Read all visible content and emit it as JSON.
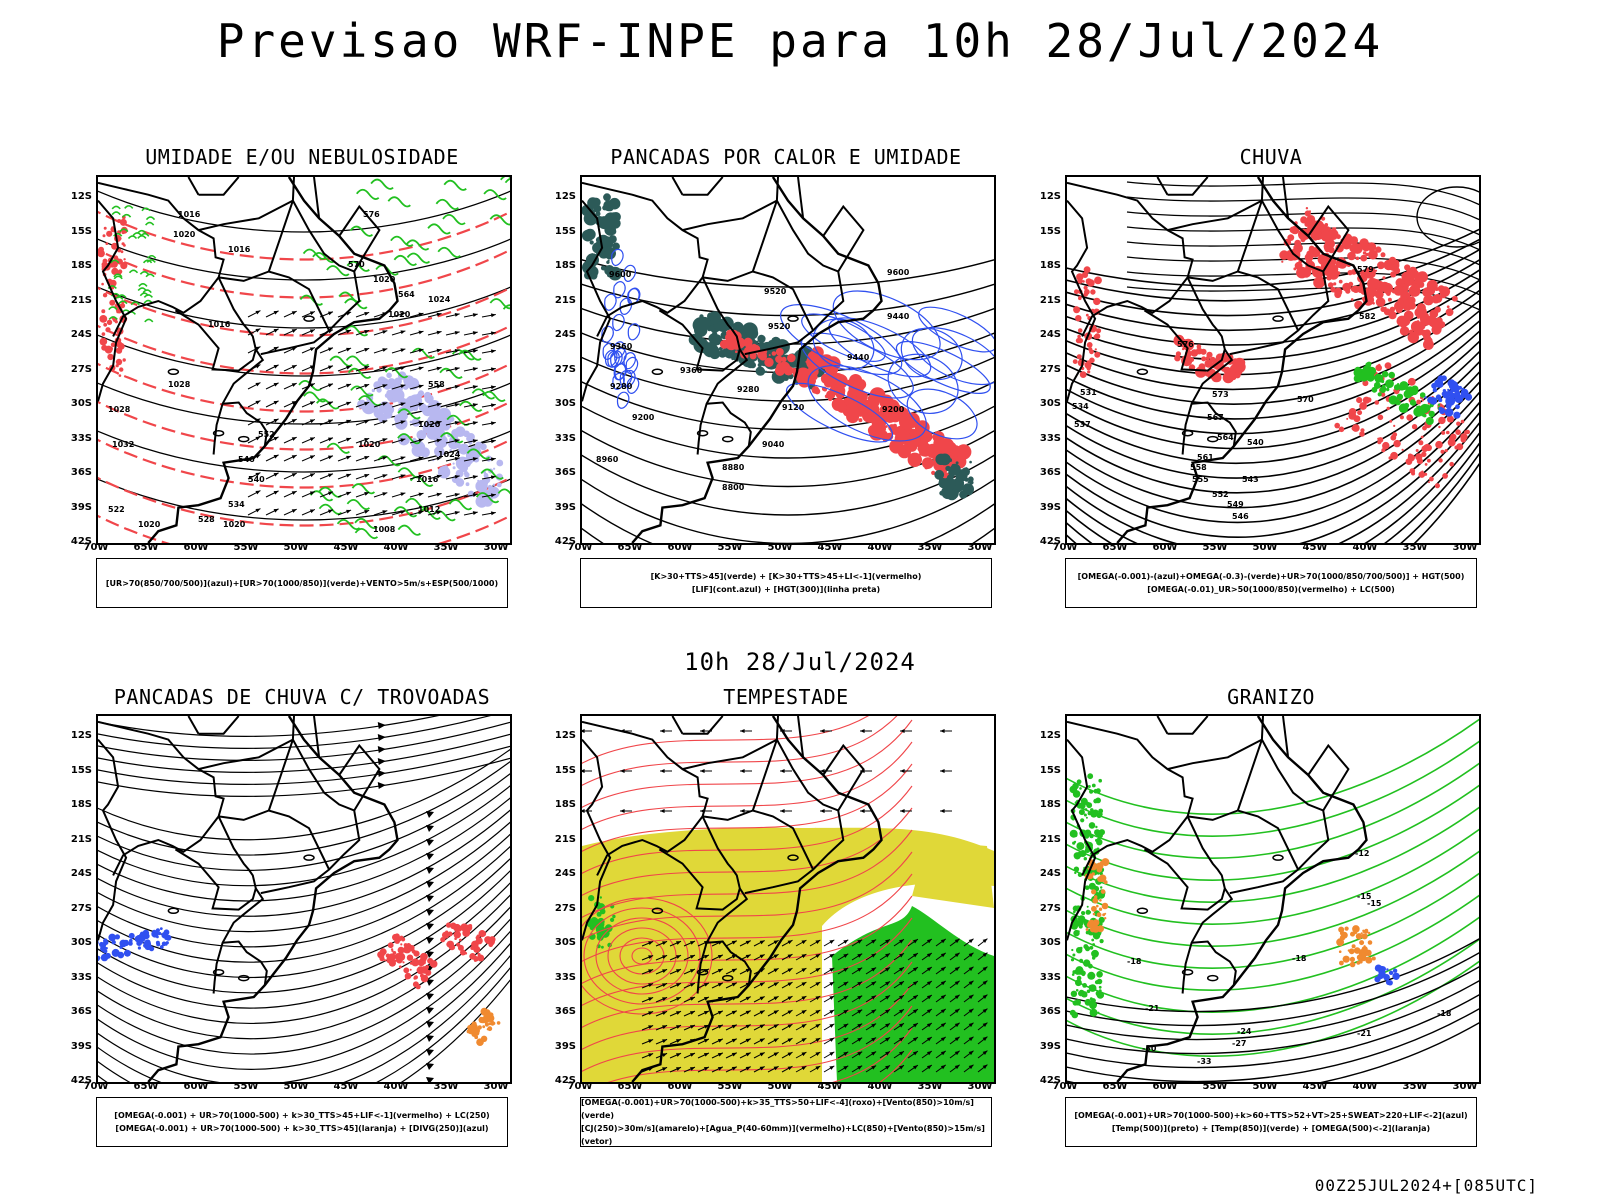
{
  "title": "Previsao WRF-INPE  para 10h 28/Jul/2024",
  "middle_title": "10h 28/Jul/2024",
  "footer": "00Z25JUL2024+[085UTC]",
  "lat_labels": [
    "12S",
    "15S",
    "18S",
    "21S",
    "24S",
    "27S",
    "30S",
    "33S",
    "36S",
    "39S",
    "42S"
  ],
  "lon_labels": [
    "70W",
    "65W",
    "60W",
    "55W",
    "50W",
    "45W",
    "40W",
    "35W",
    "30W"
  ],
  "colors": {
    "red": "#f0464a",
    "green": "#22c020",
    "blue": "#3050f0",
    "lavender": "#b8b8f0",
    "dark_teal": "#2c5a58",
    "yellow": "#e0d838",
    "orange": "#f08a30",
    "black": "#000000"
  },
  "panels": [
    {
      "title": "UMIDADE E/OU NEBULOSIDADE",
      "legend": [
        "[UR>70(850/700/500)](azul)+[UR>70(1000/850)](verde)+VENTO>5m/s+ESP(500/1000)"
      ],
      "contour_labels": [
        "1016",
        "1020",
        "1016",
        "1016",
        "1020",
        "1024",
        "1020",
        "1020",
        "1024",
        "1028",
        "1028",
        "1032",
        "1020",
        "1016",
        "1012",
        "1008",
        "1020",
        "1020",
        "576",
        "570",
        "564",
        "558",
        "552",
        "546",
        "540",
        "534",
        "528",
        "522"
      ]
    },
    {
      "title": "PANCADAS POR CALOR E UMIDADE",
      "legend": [
        "[K>30+TTS>45](verde) + [K>30+TTS>45+LI<-1](vermelho)",
        "[LIF](cont.azul) + [HGT(300)](linha preta)"
      ],
      "contour_labels": [
        "9600",
        "9600",
        "9520",
        "9520",
        "9440",
        "9440",
        "9360",
        "9360",
        "9280",
        "9280",
        "9200",
        "9200",
        "9120",
        "9040",
        "8960",
        "8880",
        "8800"
      ]
    },
    {
      "title": "CHUVA",
      "legend": [
        "[OMEGA(-0.001)-(azul)+OMEGA(-0.3)-(verde)+UR>70(1000/850/700/500)] + HGT(500)",
        "[OMEGA(-0.01)_UR>50(1000/850)(vermelho) + LC(500)"
      ],
      "contour_labels": [
        "582",
        "579",
        "576",
        "573",
        "570",
        "567",
        "564",
        "561",
        "558",
        "555",
        "552",
        "549",
        "546",
        "543",
        "540",
        "537",
        "534",
        "531"
      ]
    },
    {
      "title": "PANCADAS DE CHUVA C/ TROVOADAS",
      "legend": [
        "[OMEGA(-0.001) + UR>70(1000-500) + k>30_TTS>45+LIF<-1](vermelho) + LC(250)",
        "[OMEGA(-0.001) + UR>70(1000-500) + k>30_TTS>45](laranja) + [DIVG(250)](azul)"
      ],
      "contour_labels": []
    },
    {
      "title": "TEMPESTADE",
      "legend": [
        "[OMEGA(-0.001)+UR>70(1000-500)+k>35_TTS>50+LIF<-4](roxo)+[Vento(850)>10m/s](verde)",
        "[CJ(250)>30m/s](amarelo)+[Agua_P(40-60mm)](vermelho)+LC(850)+[Vento(850)>15m/s](vetor)"
      ],
      "contour_labels": []
    },
    {
      "title": "GRANIZO",
      "legend": [
        "[OMEGA(-0.001)+UR>70(1000-500)+k>60+TTS>52+VT>25+SWEAT>220+LIF<-2](azul)",
        "[Temp(500)](preto) + [Temp(850)](verde) + [OMEGA(500)<-2](laranja)"
      ],
      "contour_labels": [
        "-12",
        "-15",
        "-18",
        "-18",
        "-21",
        "-21",
        "-24",
        "-27",
        "-30",
        "-33",
        "-15",
        "-18"
      ]
    }
  ]
}
